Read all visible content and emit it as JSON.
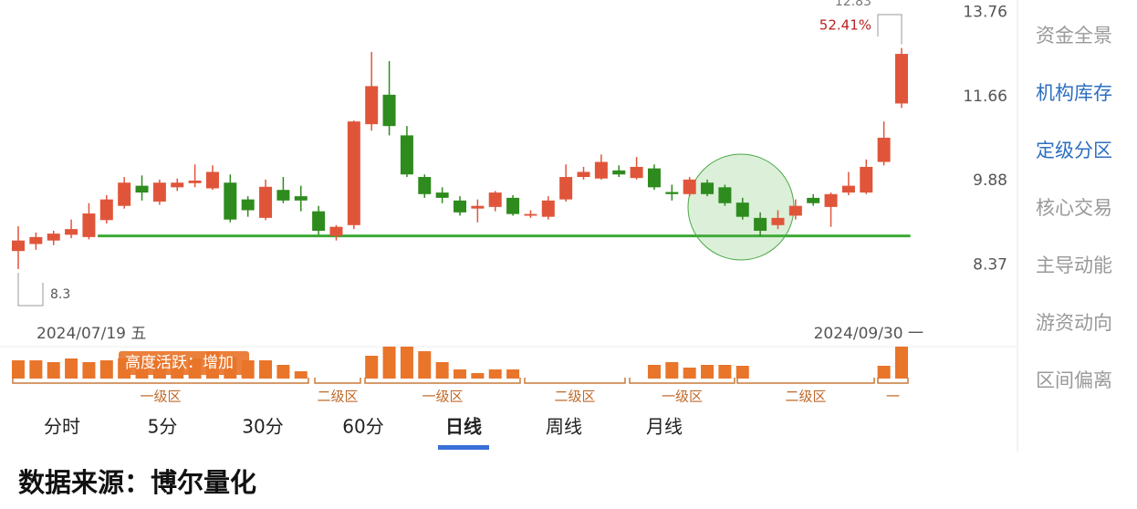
{
  "chart_data": {
    "type": "candlestick",
    "categories": [
      "2024/07/19 五",
      null,
      null,
      null,
      null,
      null,
      null,
      null,
      null,
      null,
      null,
      null,
      null,
      null,
      null,
      null,
      null,
      null,
      null,
      null,
      null,
      null,
      null,
      null,
      null,
      null,
      null,
      null,
      null,
      null,
      null,
      null,
      null,
      null,
      null,
      null,
      null,
      null,
      null,
      null,
      null,
      null,
      null,
      null,
      null,
      null,
      null,
      null,
      null,
      null,
      "2024/09/30 一"
    ],
    "open": [
      8.6,
      8.72,
      8.78,
      8.88,
      8.84,
      9.14,
      9.4,
      9.78,
      9.48,
      9.75,
      9.83,
      9.73,
      9.84,
      9.52,
      9.18,
      9.7,
      9.58,
      9.3,
      8.86,
      9.05,
      11.04,
      11.7,
      10.8,
      9.95,
      9.65,
      9.5,
      9.35,
      9.38,
      9.55,
      9.22,
      9.2,
      9.52,
      9.95,
      9.92,
      10.08,
      9.93,
      10.12,
      9.66,
      9.62,
      9.84,
      9.75,
      9.46,
      9.18,
      9.05,
      9.22,
      9.55,
      9.38,
      9.65,
      9.65,
      10.25,
      11.5
    ],
    "high": [
      9.03,
      8.92,
      8.95,
      9.15,
      9.45,
      9.6,
      9.95,
      9.98,
      9.9,
      9.92,
      10.2,
      10.18,
      10.0,
      9.58,
      9.9,
      9.95,
      9.78,
      9.4,
      9.05,
      11.12,
      12.73,
      12.5,
      11.0,
      10.0,
      9.75,
      9.58,
      9.52,
      9.68,
      9.6,
      9.32,
      9.58,
      10.2,
      10.15,
      10.4,
      10.18,
      10.35,
      10.2,
      9.8,
      9.95,
      9.9,
      9.8,
      9.55,
      9.28,
      9.32,
      9.52,
      9.62,
      9.65,
      10.05,
      10.3,
      11.1,
      12.83
    ],
    "low": [
      8.3,
      8.62,
      8.7,
      8.82,
      8.8,
      9.08,
      9.35,
      9.5,
      9.42,
      9.68,
      9.75,
      9.7,
      9.1,
      9.2,
      9.14,
      9.45,
      9.3,
      8.88,
      8.78,
      8.98,
      10.9,
      10.8,
      9.95,
      9.55,
      9.45,
      9.22,
      9.1,
      9.3,
      9.22,
      9.18,
      9.15,
      9.48,
      9.9,
      9.9,
      9.95,
      9.9,
      9.7,
      9.5,
      9.58,
      9.58,
      9.4,
      9.15,
      8.85,
      8.98,
      9.15,
      9.4,
      9.02,
      9.6,
      9.62,
      10.18,
      11.4
    ],
    "close": [
      8.78,
      8.84,
      8.9,
      8.98,
      9.26,
      9.52,
      9.84,
      9.65,
      9.84,
      9.84,
      9.88,
      10.05,
      9.15,
      9.32,
      9.76,
      9.5,
      9.5,
      8.95,
      9.02,
      11.1,
      11.9,
      11.0,
      10.0,
      9.62,
      9.55,
      9.28,
      9.4,
      9.65,
      9.25,
      9.25,
      9.5,
      9.95,
      10.05,
      10.25,
      10.0,
      10.15,
      9.75,
      9.62,
      9.9,
      9.62,
      9.45,
      9.2,
      8.95,
      9.18,
      9.4,
      9.45,
      9.62,
      9.78,
      10.15,
      10.75,
      12.68
    ],
    "volume": [
      20,
      20,
      18,
      22,
      18,
      20,
      22,
      20,
      22,
      20,
      22,
      30,
      24,
      20,
      20,
      15,
      8,
      0,
      0,
      0,
      25,
      35,
      35,
      30,
      18,
      10,
      6,
      10,
      10,
      0,
      0,
      0,
      0,
      0,
      0,
      0,
      15,
      18,
      12,
      15,
      15,
      14,
      0,
      0,
      0,
      0,
      0,
      0,
      0,
      14,
      35
    ],
    "up_color": "#e0553a",
    "down_color": "#2e8b1e",
    "volume_color": "#e8752a",
    "log_scale": true,
    "ylim": [
      7.6,
      14.1
    ],
    "yticks": [
      13.76,
      11.66,
      9.88,
      8.37
    ],
    "support_level": 8.86,
    "support_color": "#3aaa35",
    "high_label": "12.83",
    "change_label": "52.41%",
    "low_label": "8.3",
    "tag": "高度活跃：增加",
    "zones": [
      "一级区",
      "二级区",
      "一级区",
      "二级区",
      "一级区",
      "二级区",
      "一"
    ]
  },
  "tabs": {
    "items": [
      "分时",
      "5分",
      "30分",
      "60分",
      "日线",
      "周线",
      "月线"
    ],
    "active": "日线"
  },
  "side_menu": {
    "items": [
      "资金全景",
      "机构库存",
      "定级分区",
      "核心交易",
      "主导动能",
      "游资动向",
      "区间偏离"
    ]
  },
  "footer": "数据来源：博尔量化"
}
